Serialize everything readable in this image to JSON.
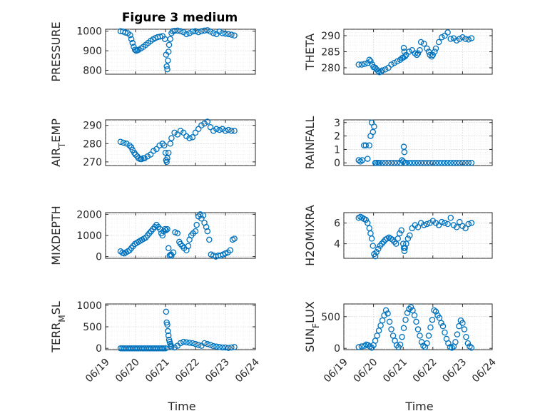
{
  "marker_color": "#0072BD",
  "chart_data": [
    {
      "type": "scatter",
      "title": "Figure 3 medium",
      "ylabel": "PRESSURE",
      "xlabel": "",
      "xlim": [
        0,
        5
      ],
      "ylim": [
        780,
        1010
      ],
      "yticks": [
        800,
        900,
        1000
      ],
      "xticks": [
        "06/19",
        "06/20",
        "06/21",
        "06/22",
        "06/23",
        "06/24"
      ],
      "grid": true,
      "x": [
        0.5,
        0.58,
        0.66,
        0.74,
        0.82,
        0.86,
        0.9,
        0.94,
        0.98,
        1.02,
        1.06,
        1.1,
        1.18,
        1.26,
        1.34,
        1.42,
        1.5,
        1.58,
        1.66,
        1.74,
        1.82,
        1.9,
        1.98,
        2.02,
        2.04,
        2.06,
        2.08,
        2.1,
        2.12,
        2.16,
        2.2,
        2.24,
        2.3,
        2.4,
        2.5,
        2.6,
        2.7,
        2.8,
        2.9,
        3.0,
        3.1,
        3.2,
        3.3,
        3.4,
        3.5,
        3.6,
        3.7,
        3.8,
        3.9,
        4.0,
        4.1,
        4.2,
        4.3
      ],
      "y": [
        1000,
        998,
        993,
        990,
        980,
        960,
        940,
        920,
        905,
        900,
        902,
        905,
        912,
        920,
        930,
        940,
        950,
        958,
        965,
        970,
        972,
        975,
        960,
        880,
        820,
        805,
        850,
        895,
        930,
        960,
        990,
        1000,
        1002,
        1003,
        1000,
        995,
        985,
        990,
        998,
        1000,
        995,
        1000,
        1003,
        1005,
        998,
        990,
        985,
        998,
        990,
        987,
        985,
        982,
        978
      ]
    },
    {
      "type": "scatter",
      "title": "",
      "ylabel": "THETA",
      "xlabel": "",
      "xlim": [
        0,
        5
      ],
      "ylim": [
        278,
        292
      ],
      "yticks": [
        280,
        285,
        290
      ],
      "xticks": [
        "06/19",
        "06/20",
        "06/21",
        "06/22",
        "06/23",
        "06/24"
      ],
      "grid": true,
      "x": [
        0.5,
        0.6,
        0.7,
        0.8,
        0.86,
        0.9,
        0.96,
        1.0,
        1.06,
        1.1,
        1.16,
        1.2,
        1.26,
        1.3,
        1.4,
        1.5,
        1.6,
        1.7,
        1.8,
        1.9,
        1.96,
        2.0,
        2.02,
        2.04,
        2.06,
        2.1,
        2.2,
        2.3,
        2.4,
        2.46,
        2.5,
        2.56,
        2.6,
        2.7,
        2.8,
        2.86,
        2.9,
        2.96,
        3.0,
        3.06,
        3.1,
        3.2,
        3.3,
        3.4,
        3.5,
        3.6,
        3.7,
        3.8,
        3.9,
        4.0,
        4.1,
        4.2,
        4.3
      ],
      "y": [
        281,
        281,
        281.2,
        281.5,
        282.5,
        282,
        281,
        280.2,
        280,
        279.5,
        279,
        278.6,
        278.8,
        279.2,
        279.5,
        280,
        281,
        281.5,
        282,
        282.5,
        283,
        283.2,
        286.2,
        285,
        283.5,
        284,
        285,
        285.5,
        284.5,
        284,
        284.5,
        285.5,
        288,
        287.5,
        286,
        285,
        284,
        283.5,
        284,
        285,
        286,
        288,
        289.5,
        290,
        291,
        289,
        289.2,
        288.5,
        289,
        289.5,
        289,
        288.8,
        289.2
      ]
    },
    {
      "type": "scatter",
      "title": "",
      "ylabel": "AIR_TEMP",
      "xlabel": "",
      "xlim": [
        0,
        5
      ],
      "ylim": [
        268,
        293
      ],
      "yticks": [
        270,
        280,
        290
      ],
      "xticks": [
        "06/19",
        "06/20",
        "06/21",
        "06/22",
        "06/23",
        "06/24"
      ],
      "grid": true,
      "x": [
        0.5,
        0.6,
        0.7,
        0.8,
        0.86,
        0.9,
        0.96,
        1.0,
        1.06,
        1.1,
        1.16,
        1.2,
        1.26,
        1.3,
        1.4,
        1.5,
        1.6,
        1.7,
        1.8,
        1.9,
        1.96,
        2.0,
        2.02,
        2.04,
        2.06,
        2.1,
        2.16,
        2.2,
        2.3,
        2.4,
        2.5,
        2.6,
        2.7,
        2.8,
        2.9,
        3.0,
        3.1,
        3.2,
        3.3,
        3.4,
        3.5,
        3.6,
        3.7,
        3.8,
        3.9,
        4.0,
        4.1,
        4.2,
        4.3
      ],
      "y": [
        281,
        280.5,
        280,
        279,
        278,
        276.5,
        275,
        274,
        273,
        272,
        271.5,
        271.5,
        272,
        272,
        273,
        274,
        276,
        277,
        279,
        280,
        279,
        275,
        271,
        270,
        272,
        275,
        280,
        283,
        286,
        285,
        287,
        286,
        284,
        283,
        283.5,
        286,
        288,
        290,
        291,
        292,
        289,
        287,
        288,
        287.5,
        288,
        287,
        287.5,
        287,
        287
      ]
    },
    {
      "type": "scatter",
      "title": "",
      "ylabel": "RAINFALL",
      "xlabel": "",
      "xlim": [
        0,
        5
      ],
      "ylim": [
        -0.2,
        3.2
      ],
      "yticks": [
        0,
        1,
        2,
        3
      ],
      "xticks": [
        "06/19",
        "06/20",
        "06/21",
        "06/22",
        "06/23",
        "06/24"
      ],
      "grid": true,
      "x": [
        0.5,
        0.56,
        0.62,
        0.68,
        0.74,
        0.8,
        0.86,
        0.9,
        0.94,
        0.98,
        1.02,
        1.06,
        1.1,
        1.16,
        1.2,
        1.3,
        1.4,
        1.5,
        1.6,
        1.7,
        1.8,
        1.9,
        1.96,
        2.0,
        2.02,
        2.04,
        2.06,
        2.1,
        2.2,
        2.3,
        2.4,
        2.5,
        2.6,
        2.7,
        2.8,
        2.9,
        3.0,
        3.1,
        3.2,
        3.3,
        3.4,
        3.5,
        3.6,
        3.7,
        3.8,
        3.9,
        4.0,
        4.1,
        4.2,
        4.3
      ],
      "y": [
        0.2,
        0.1,
        0.2,
        1.3,
        1.3,
        0.3,
        1.3,
        2.0,
        3.0,
        2.3,
        2.7,
        0,
        0,
        0,
        0,
        0,
        0,
        0,
        0,
        0,
        0,
        0,
        0.2,
        0.1,
        1.2,
        0.8,
        0,
        0,
        0,
        0,
        0,
        0,
        0,
        0,
        0,
        0,
        0,
        0,
        0,
        0,
        0,
        0,
        0,
        0,
        0,
        0,
        0,
        0,
        0,
        0
      ]
    },
    {
      "type": "scatter",
      "title": "",
      "ylabel": "MIXDEPTH",
      "xlabel": "",
      "xlim": [
        0,
        5
      ],
      "ylim": [
        -80,
        2080
      ],
      "yticks": [
        0,
        1000,
        2000
      ],
      "xticks": [
        "06/19",
        "06/20",
        "06/21",
        "06/22",
        "06/23",
        "06/24"
      ],
      "grid": true,
      "x": [
        0.5,
        0.56,
        0.62,
        0.68,
        0.74,
        0.8,
        0.86,
        0.92,
        0.98,
        1.04,
        1.1,
        1.16,
        1.22,
        1.28,
        1.34,
        1.4,
        1.46,
        1.52,
        1.58,
        1.64,
        1.7,
        1.76,
        1.82,
        1.86,
        1.9,
        1.94,
        1.98,
        2.02,
        2.06,
        2.1,
        2.14,
        2.18,
        2.2,
        2.26,
        2.32,
        2.4,
        2.46,
        2.5,
        2.56,
        2.62,
        2.7,
        2.76,
        2.8,
        2.86,
        2.92,
        3.0,
        3.04,
        3.1,
        3.16,
        3.2,
        3.26,
        3.3,
        3.36,
        3.4,
        3.46,
        3.52,
        3.6,
        3.68,
        3.76,
        3.84,
        3.92,
        4.0,
        4.08,
        4.16,
        4.24,
        4.3
      ],
      "y": [
        250,
        180,
        150,
        200,
        250,
        300,
        400,
        500,
        600,
        650,
        700,
        750,
        800,
        850,
        900,
        1000,
        1100,
        1200,
        1300,
        1400,
        1500,
        1400,
        1300,
        1100,
        1000,
        1200,
        1300,
        1250,
        1300,
        400,
        50,
        100,
        50,
        200,
        1150,
        1100,
        700,
        600,
        500,
        400,
        300,
        500,
        800,
        1000,
        1100,
        1200,
        1500,
        1900,
        2000,
        1800,
        1950,
        1600,
        1400,
        1200,
        800,
        100,
        50,
        0,
        50,
        50,
        100,
        150,
        200,
        300,
        800,
        850
      ]
    },
    {
      "type": "scatter",
      "title": "",
      "ylabel": "H2OMIXRA",
      "xlabel": "",
      "xlim": [
        0,
        5
      ],
      "ylim": [
        2.6,
        7.0
      ],
      "yticks": [
        4,
        6
      ],
      "xticks": [
        "06/19",
        "06/20",
        "06/21",
        "06/22",
        "06/23",
        "06/24"
      ],
      "grid": true,
      "x": [
        0.5,
        0.56,
        0.62,
        0.68,
        0.74,
        0.8,
        0.86,
        0.9,
        0.94,
        0.98,
        1.02,
        1.06,
        1.1,
        1.16,
        1.22,
        1.28,
        1.34,
        1.4,
        1.46,
        1.52,
        1.58,
        1.64,
        1.7,
        1.76,
        1.82,
        1.88,
        1.94,
        2.0,
        2.02,
        2.04,
        2.06,
        2.1,
        2.16,
        2.22,
        2.3,
        2.4,
        2.5,
        2.6,
        2.7,
        2.8,
        2.9,
        3.0,
        3.1,
        3.2,
        3.3,
        3.4,
        3.5,
        3.6,
        3.7,
        3.8,
        3.9,
        4.0,
        4.1,
        4.2,
        4.3
      ],
      "y": [
        6.5,
        6.6,
        6.5,
        6.4,
        6.3,
        6.0,
        5.5,
        5.0,
        4.5,
        3.8,
        3.0,
        2.8,
        3.2,
        3.5,
        3.8,
        4.0,
        4.2,
        4.4,
        4.5,
        4.6,
        4.5,
        4.4,
        4.2,
        4.0,
        4.5,
        5.0,
        5.3,
        4.0,
        3.6,
        3.3,
        3.6,
        4.0,
        4.5,
        4.8,
        5.5,
        5.8,
        5.6,
        6.0,
        5.8,
        5.9,
        6.0,
        6.2,
        6.0,
        5.8,
        6.1,
        6.0,
        5.9,
        6.5,
        5.8,
        5.6,
        6.1,
        5.7,
        5.5,
        5.9,
        6.0
      ]
    },
    {
      "type": "scatter",
      "title": "",
      "ylabel": "TERR_MSL",
      "xlabel": "Time",
      "xlim": [
        0,
        5
      ],
      "ylim": [
        -30,
        1030
      ],
      "yticks": [
        0,
        500,
        1000
      ],
      "xticks": [
        "06/19",
        "06/20",
        "06/21",
        "06/22",
        "06/23",
        "06/24"
      ],
      "grid": true,
      "x": [
        0.5,
        0.56,
        0.62,
        0.68,
        0.74,
        0.8,
        0.86,
        0.92,
        0.98,
        1.04,
        1.1,
        1.16,
        1.22,
        1.28,
        1.34,
        1.4,
        1.46,
        1.52,
        1.58,
        1.64,
        1.7,
        1.76,
        1.82,
        1.88,
        1.94,
        2.0,
        2.02,
        2.04,
        2.06,
        2.08,
        2.1,
        2.12,
        2.14,
        2.16,
        2.18,
        2.2,
        2.3,
        2.4,
        2.5,
        2.6,
        2.7,
        2.8,
        2.9,
        3.0,
        3.1,
        3.2,
        3.3,
        3.4,
        3.5,
        3.6,
        3.7,
        3.8,
        3.9,
        4.0,
        4.1,
        4.2,
        4.3
      ],
      "y": [
        0,
        0,
        0,
        0,
        0,
        0,
        0,
        0,
        0,
        0,
        0,
        0,
        0,
        0,
        0,
        0,
        0,
        0,
        0,
        0,
        0,
        0,
        0,
        0,
        0,
        0,
        850,
        600,
        550,
        400,
        300,
        200,
        150,
        100,
        60,
        30,
        20,
        60,
        120,
        150,
        140,
        130,
        120,
        100,
        80,
        60,
        120,
        100,
        80,
        50,
        40,
        30,
        20,
        20,
        10,
        20,
        30
      ]
    },
    {
      "type": "scatter",
      "title": "",
      "ylabel": "SUN_FLUX",
      "xlabel": "Time",
      "xlim": [
        0,
        5
      ],
      "ylim": [
        -20,
        700
      ],
      "yticks": [
        0,
        500
      ],
      "xticks": [
        "06/19",
        "06/20",
        "06/21",
        "06/22",
        "06/23",
        "06/24"
      ],
      "grid": true,
      "x": [
        0.5,
        0.6,
        0.7,
        0.76,
        0.82,
        0.88,
        0.94,
        1.0,
        1.06,
        1.12,
        1.18,
        1.24,
        1.3,
        1.36,
        1.42,
        1.48,
        1.54,
        1.6,
        1.66,
        1.72,
        1.78,
        1.84,
        1.9,
        1.96,
        2.02,
        2.08,
        2.14,
        2.2,
        2.26,
        2.32,
        2.38,
        2.44,
        2.5,
        2.56,
        2.62,
        2.68,
        2.74,
        2.8,
        2.86,
        2.92,
        2.98,
        3.04,
        3.1,
        3.16,
        3.22,
        3.28,
        3.34,
        3.4,
        3.46,
        3.52,
        3.58,
        3.64,
        3.7,
        3.76,
        3.82,
        3.88,
        3.94,
        4.0,
        4.06,
        4.12,
        4.18,
        4.24,
        4.3
      ],
      "y": [
        20,
        30,
        40,
        60,
        50,
        30,
        10,
        50,
        120,
        200,
        280,
        360,
        440,
        520,
        600,
        550,
        420,
        300,
        200,
        120,
        50,
        20,
        60,
        180,
        320,
        450,
        560,
        620,
        650,
        600,
        520,
        420,
        300,
        200,
        100,
        40,
        20,
        80,
        200,
        330,
        450,
        600,
        580,
        520,
        480,
        400,
        350,
        250,
        150,
        80,
        20,
        10,
        30,
        100,
        220,
        350,
        440,
        400,
        300,
        180,
        80,
        30,
        10
      ]
    }
  ]
}
